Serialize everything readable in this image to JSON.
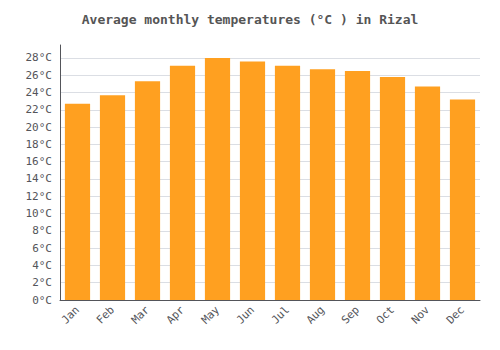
{
  "chart_data": {
    "type": "bar",
    "title": "Average monthly temperatures (°C ) in Rizal",
    "categories": [
      "Jan",
      "Feb",
      "Mar",
      "Apr",
      "May",
      "Jun",
      "Jul",
      "Aug",
      "Sep",
      "Oct",
      "Nov",
      "Dec"
    ],
    "values": [
      22.7,
      23.7,
      25.3,
      27.1,
      28.0,
      27.6,
      27.1,
      26.7,
      26.5,
      25.8,
      24.7,
      23.2
    ],
    "color": "#FFA020",
    "ylim": [
      0,
      29.5
    ],
    "yticks": [
      {
        "value": 0,
        "label": "0°C"
      },
      {
        "value": 2,
        "label": "2°C"
      },
      {
        "value": 4,
        "label": "4°C"
      },
      {
        "value": 6,
        "label": "6°C"
      },
      {
        "value": 8,
        "label": "8°C"
      },
      {
        "value": 10,
        "label": "10°C"
      },
      {
        "value": 12,
        "label": "12°C"
      },
      {
        "value": 14,
        "label": "14°C"
      },
      {
        "value": 16,
        "label": "16°C"
      },
      {
        "value": 18,
        "label": "18°C"
      },
      {
        "value": 20,
        "label": "20°C"
      },
      {
        "value": 22,
        "label": "22°C"
      },
      {
        "value": 24,
        "label": "24°C"
      },
      {
        "value": 26,
        "label": "26°C"
      },
      {
        "value": 28,
        "label": "28°C"
      }
    ],
    "grid": true
  }
}
